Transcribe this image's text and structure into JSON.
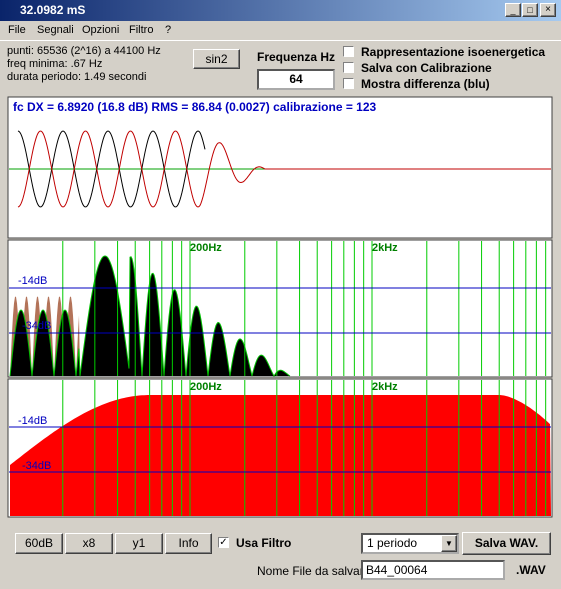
{
  "window": {
    "title": "32.0982 mS"
  },
  "menu": [
    "File",
    "Segnali",
    "Opzioni",
    "Filtro",
    "?"
  ],
  "info": [
    "punti: 65536 (2^16) a 44100 Hz",
    "freq minima: .67 Hz",
    "durata periodo: 1.49 secondi"
  ],
  "controls": {
    "sin2": "sin2",
    "frequency_label": "Frequenza Hz",
    "frequency": "64",
    "checkboxes": [
      "Rappresentazione isoenergetica",
      "Salva con Calibrazione",
      "Mostra differenza (blu)"
    ]
  },
  "plot1": {
    "caption": "fc DX = 6.8920 (16.8 dB) RMS = 86.84 (0.0027)  calibrazione = 123"
  },
  "spectrum_labels": {
    "f1": "200Hz",
    "f2": "2kHz",
    "db1": "-14dB",
    "db2": "-34dB"
  },
  "bottom": {
    "buttons": [
      "60dB",
      "x8",
      "y1",
      "Info"
    ],
    "usa_filtro": "Usa Filtro",
    "dropdown": "1 periodo",
    "save": "Salva WAV.",
    "file_label": "Nome File da salvare",
    "file_name": "B44_00064",
    "ext": ".WAV"
  }
}
